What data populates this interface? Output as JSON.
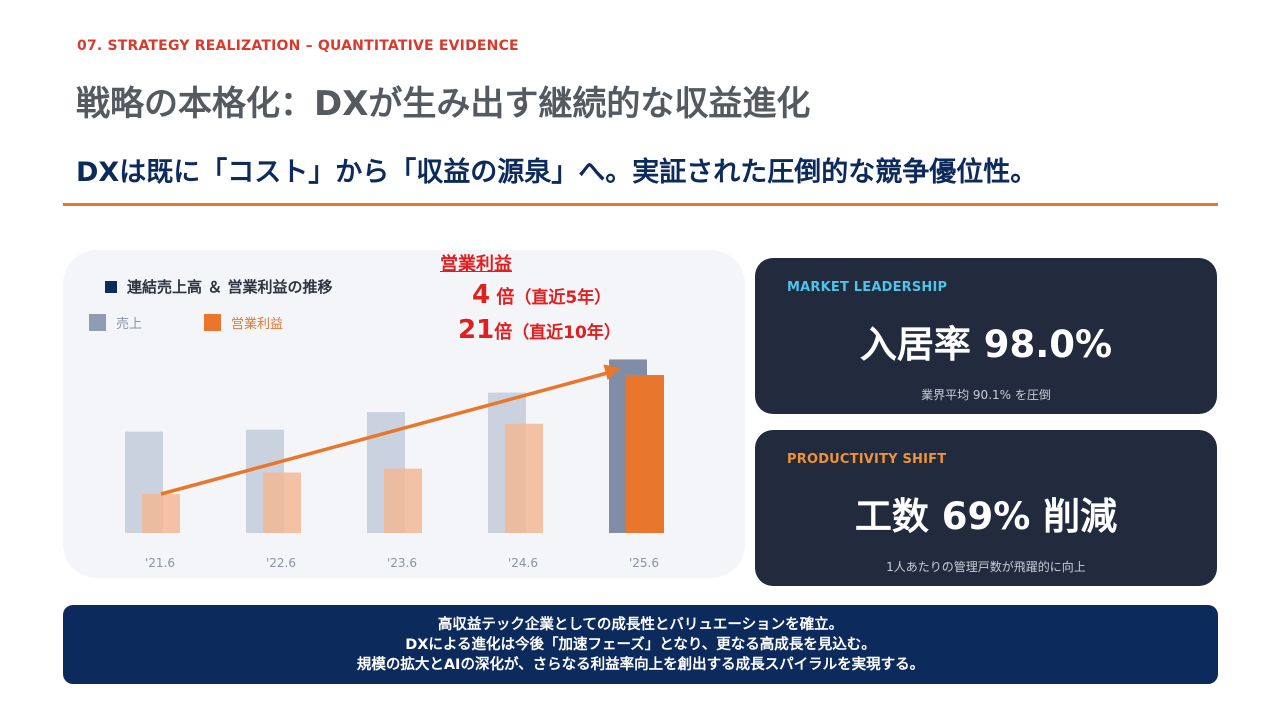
{
  "header": {
    "eyebrow": "07. STRATEGY REALIZATION – QUANTITATIVE EVIDENCE",
    "title": "戦略の本格化：DXが生み出す継続的な収益進化",
    "subtitle": "DXは既に「コスト」から「収益の源泉」へ。実証された圧倒的な競争優位性。"
  },
  "chart_legend": {
    "title": "連結売上高 ＆ 営業利益の推移",
    "sales_label": "売上",
    "profit_label": "営業利益"
  },
  "annotation": {
    "heading": "営業利益",
    "line1_number": "4",
    "line1_unit": " 倍",
    "line1_note": "（直近5年）",
    "line2_number": "21",
    "line2_unit": "倍",
    "line2_note": "（直近10年）"
  },
  "chart_data": {
    "type": "bar",
    "categories": [
      "'21.6",
      "'22.6",
      "'23.6",
      "'24.6",
      "'25.6"
    ],
    "series": [
      {
        "name": "売上",
        "values": [
          52,
          53,
          62,
          72,
          89
        ]
      },
      {
        "name": "営業利益",
        "values": [
          20,
          31,
          33,
          56,
          81
        ]
      }
    ],
    "ylim": [
      0,
      100
    ],
    "trend_arrow": true,
    "colors": {
      "sales": "#c9d2de",
      "sales_latest": "#7f8ea6",
      "profit": "#f2b896",
      "profit_latest": "#e8762c",
      "arrow": "#e8762c"
    }
  },
  "cards": [
    {
      "label": "MARKET LEADERSHIP",
      "value": "入居率 98.0%",
      "note": "業界平均 90.1% を圧倒",
      "label_color": "#4fc3e8"
    },
    {
      "label": "PRODUCTIVITY SHIFT",
      "value": "工数 69% 削減",
      "note": "1人あたりの管理戸数が飛躍的に向上",
      "label_color": "#f0923a"
    }
  ],
  "banner": {
    "line1": "高収益テック企業としての成長性とバリュエーションを確立。",
    "line2": "DXによる進化は今後「加速フェーズ」となり、更なる高成長を見込む。",
    "line3": "規模の拡大とAIの深化が、さらなる利益率向上を創出する成長スパイラルを実現する。"
  }
}
